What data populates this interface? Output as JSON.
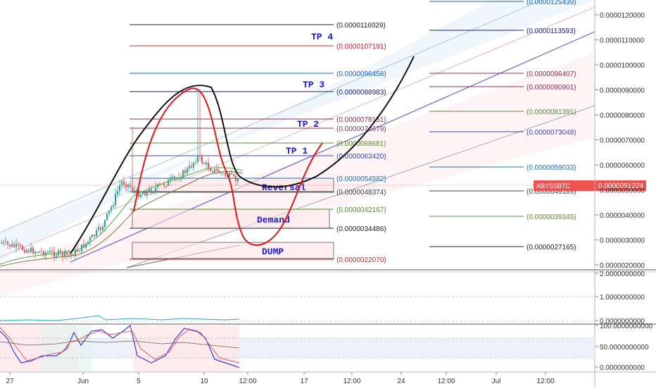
{
  "symbol": "ABYSSBTC",
  "last_price": "0.0000051224",
  "colors": {
    "bull": "#26a69a",
    "bear": "#ef5350",
    "black_curve": "#111111",
    "red_curve": "#e31414",
    "channel": "#5b5bd6",
    "label_blue": "#1a1ac8",
    "price_tag": "#ef5350"
  },
  "price_axis_labels": [
    "0.0000120000",
    "0.0000110000",
    "0.0000100000",
    "0.0000090000",
    "0.0000080000",
    "0.0000070000",
    "0.0000060000",
    "0.0000050000",
    "0.0000040000",
    "0.0000030000",
    "0.0000020000"
  ],
  "indicator1_axis_labels": [
    "2.0000000000",
    "1.0000000000",
    "0.0000000000"
  ],
  "indicator2_axis_labels": [
    "100.0000000000",
    "50.0000000000",
    "0.0000000000"
  ],
  "time_labels": [
    {
      "t": "27",
      "x_date": "May 27"
    },
    {
      "t": "Jun",
      "x_date": "Jun 1"
    },
    {
      "t": "5",
      "x_date": "Jun 5"
    },
    {
      "t": "10",
      "x_date": "Jun 10"
    },
    {
      "t": "12:00",
      "x_date": "Jun 12 12:00"
    },
    {
      "t": "17",
      "x_date": "Jun 17"
    },
    {
      "t": "12:00",
      "x_date": "Jun 20 12:00"
    },
    {
      "t": "24",
      "x_date": "Jun 24"
    },
    {
      "t": "12:00",
      "x_date": "Jun 27 12:00"
    },
    {
      "t": "Jul",
      "x_date": "Jul 1"
    },
    {
      "t": "12:00",
      "x_date": "Jul 4 12:00"
    }
  ],
  "left_levels": [
    {
      "value": "(0.0000116029)",
      "color": "#222222"
    },
    {
      "value": "(0.0000107191)",
      "color": "#c62828"
    },
    {
      "value": "(0.0000096458)",
      "color": "#1565c0"
    },
    {
      "value": "(0.0000088983)",
      "color": "#1a237e"
    },
    {
      "value": "(0.0000078151)",
      "color": "#8e3050"
    },
    {
      "value": "(0.0000074679)",
      "color": "#8e3050"
    },
    {
      "value": "(0.0000068681)",
      "color": "#558b2f"
    },
    {
      "value": "(0.0000063420)",
      "color": "#3949ab"
    },
    {
      "value": "(0.0000054582)",
      "color": "#1e6fb0"
    },
    {
      "value": "(0.0000048374)",
      "color": "#37474f"
    },
    {
      "value": "(0.0000042167)",
      "color": "#558b2f"
    },
    {
      "value": "(0.0000034486)",
      "color": "#222222"
    },
    {
      "value": "(0.0000022070)",
      "color": "#c62828"
    }
  ],
  "right_levels": [
    {
      "value": "(0.0000125439)",
      "color": "#1565c0"
    },
    {
      "value": "(0.0000113593)",
      "color": "#1a237e"
    },
    {
      "value": "(0.0000096407)",
      "color": "#8e3050"
    },
    {
      "value": "(0.0000090901)",
      "color": "#8e3050"
    },
    {
      "value": "(0.0000081391)",
      "color": "#558b2f"
    },
    {
      "value": "(0.0000073048)",
      "color": "#3949ab"
    },
    {
      "value": "(0.0000059033)",
      "color": "#1e6fb0"
    },
    {
      "value": "(0.0000049189)",
      "color": "#37474f"
    },
    {
      "value": "(0.0000039345)",
      "color": "#558b2f"
    },
    {
      "value": "(0.0000027165)",
      "color": "#222222"
    }
  ],
  "targets": [
    "TP 4",
    "TP 3",
    "TP 2",
    "TP 1"
  ],
  "zones": [
    {
      "label": "Reversal",
      "from": "0.0000054582",
      "to": "0.0000048374"
    },
    {
      "label": "Demand",
      "from": "0.0000042167",
      "to": "0.0000034486"
    },
    {
      "label": "DUMP",
      "from": "0.0000028500",
      "to": "0.0000022070"
    }
  ],
  "chart_data": {
    "type": "candlestick",
    "symbol": "ABYSSBTC",
    "price_axis": {
      "min": 2e-06,
      "max": 1.2e-05,
      "scale": "log",
      "tick_labels": [
        "0.0000120000",
        "0.0000110000",
        "0.0000100000",
        "0.0000090000",
        "0.0000080000",
        "0.0000070000",
        "0.0000060000",
        "0.0000050000",
        "0.0000040000",
        "0.0000030000",
        "0.0000020000"
      ]
    },
    "x_axis_tick_labels": [
      "27",
      "Jun",
      "5",
      "10",
      "12:00",
      "17",
      "12:00",
      "24",
      "12:00",
      "Jul",
      "12:00"
    ],
    "price_path_approx": [
      {
        "date": "May 26",
        "close": 2.6e-06
      },
      {
        "date": "May 28",
        "close": 2.5e-06
      },
      {
        "date": "May 31",
        "close": 2.4e-06
      },
      {
        "date": "Jun 2",
        "close": 2.6e-06
      },
      {
        "date": "Jun 3",
        "close": 3e-06
      },
      {
        "date": "Jun 4",
        "close": 4e-06
      },
      {
        "date": "Jun 5",
        "close": 4.8e-06
      },
      {
        "date": "Jun 6",
        "close": 4.7e-06
      },
      {
        "date": "Jun 7",
        "close": 5e-06
      },
      {
        "date": "Jun 8",
        "close": 5.5e-06
      },
      {
        "date": "Jun 9",
        "close": 6e-06
      },
      {
        "date": "Jun 10",
        "close": 5.8e-06
      },
      {
        "date": "Jun 11",
        "close": 5.6e-06
      },
      {
        "date": "Jun 12",
        "close": 5.1224e-06
      }
    ],
    "peak_wick": 8.9e-06,
    "last_price": 5.1224e-06
  }
}
